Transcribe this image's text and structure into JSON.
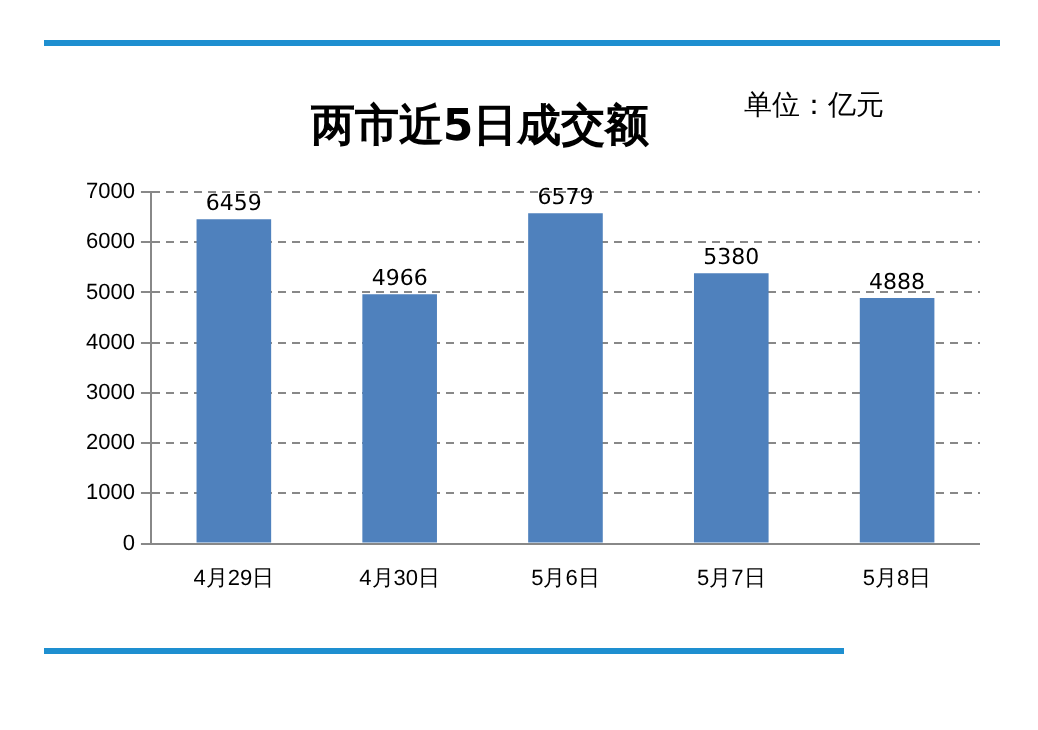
{
  "chart_data": {
    "type": "bar",
    "title": "两市近5日成交额",
    "annotations": [
      "单位：亿元"
    ],
    "categories": [
      "4月29日",
      "4月30日",
      "5月6日",
      "5月7日",
      "5月8日"
    ],
    "values": [
      6459,
      4966,
      6579,
      5380,
      4888
    ],
    "color": "#4f81bd",
    "ylim": [
      0,
      7000
    ],
    "yticks": [
      0,
      1000,
      2000,
      3000,
      4000,
      5000,
      6000,
      7000
    ],
    "grid": "y",
    "data_labels": true,
    "legend": false
  }
}
